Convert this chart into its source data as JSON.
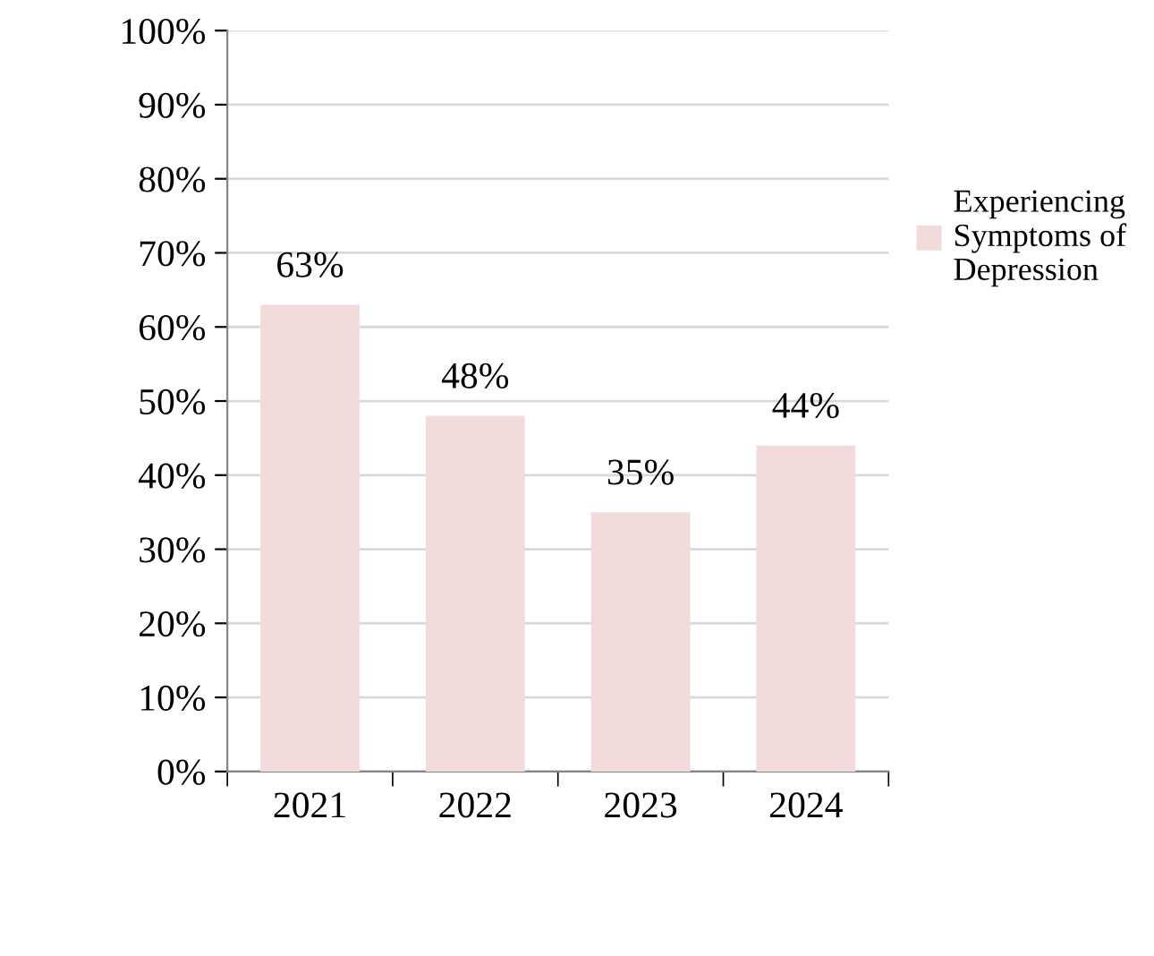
{
  "chart_data": {
    "type": "bar",
    "categories": [
      "2021",
      "2022",
      "2023",
      "2024"
    ],
    "series": [
      {
        "name": "Experiencing\nSymptoms of\nDepression",
        "color": "#f2dcdb",
        "values": [
          63,
          48,
          35,
          44
        ]
      }
    ],
    "ylim": [
      0,
      100
    ],
    "yticks": [
      {
        "value": 0,
        "label": "0%"
      },
      {
        "value": 10,
        "label": "10%"
      },
      {
        "value": 20,
        "label": "20%"
      },
      {
        "value": 30,
        "label": "30%"
      },
      {
        "value": 40,
        "label": "40%"
      },
      {
        "value": 50,
        "label": "50%"
      },
      {
        "value": 60,
        "label": "60%"
      },
      {
        "value": 70,
        "label": "70%"
      },
      {
        "value": 80,
        "label": "80%"
      },
      {
        "value": 90,
        "label": "90%"
      },
      {
        "value": 100,
        "label": "100%"
      }
    ],
    "value_labels": [
      "63%",
      "48%",
      "35%",
      "44%"
    ],
    "grid": "y",
    "legend": "right"
  }
}
